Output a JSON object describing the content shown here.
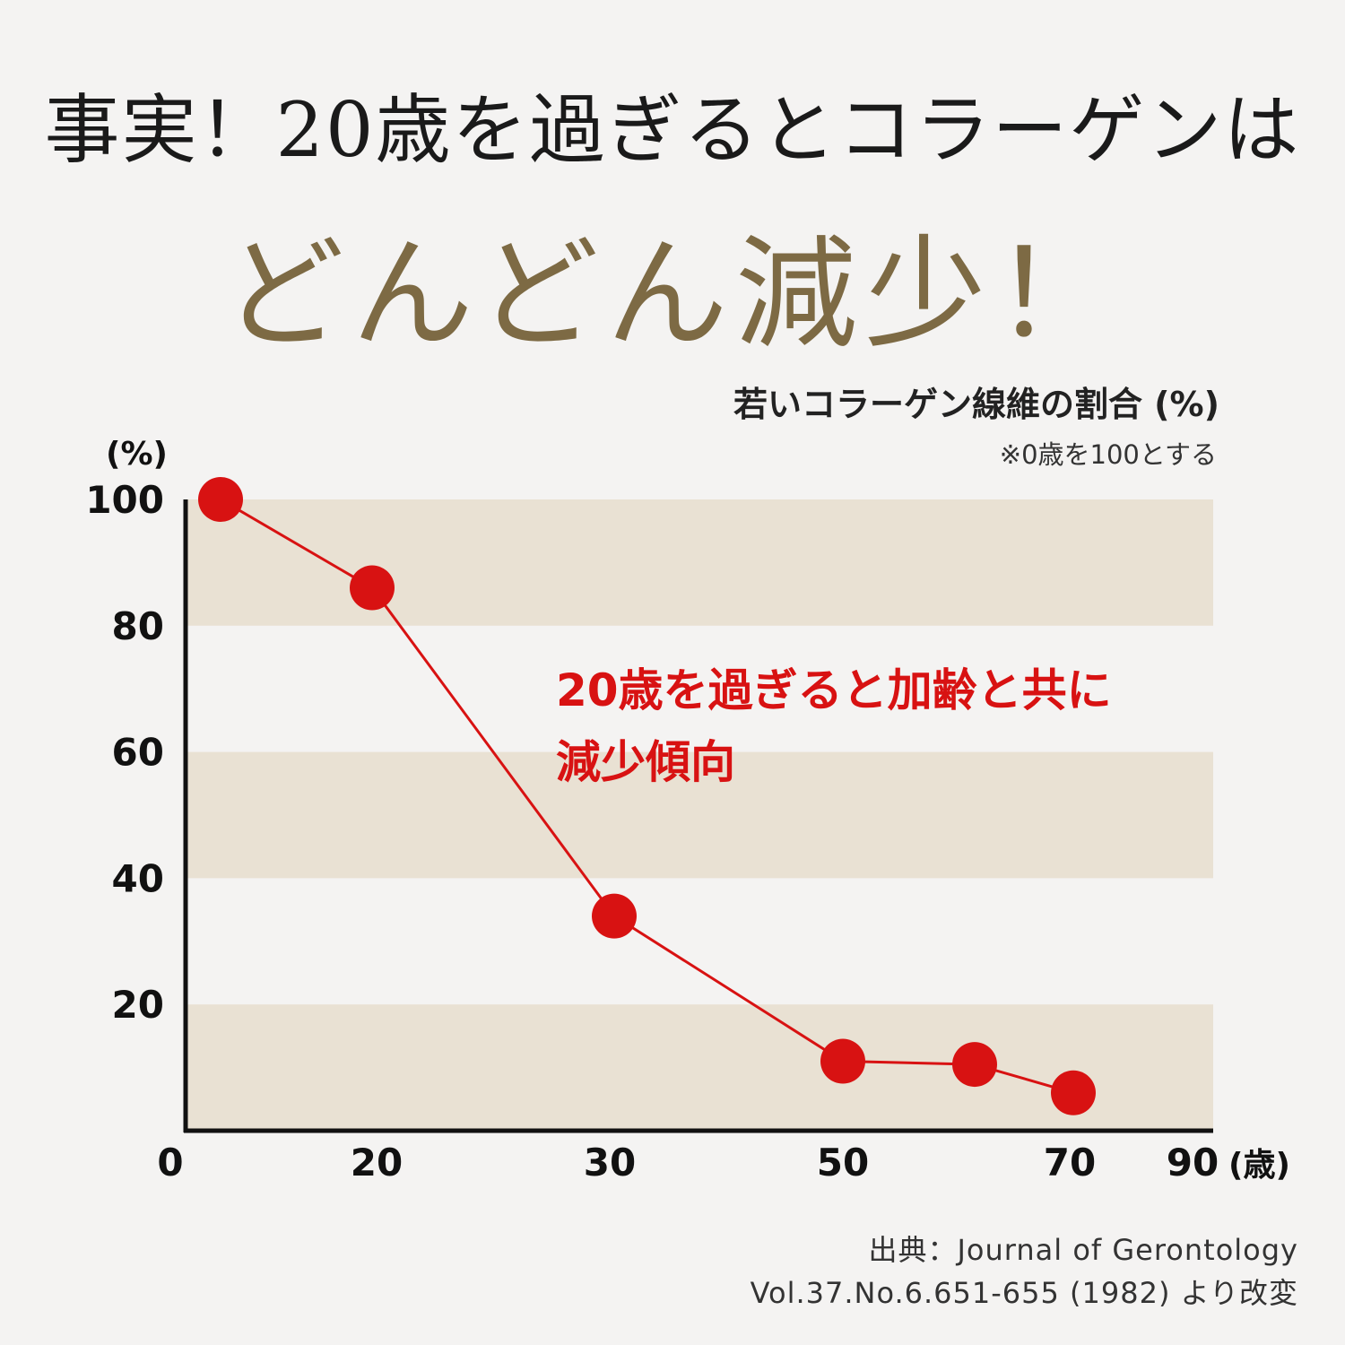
{
  "headline": {
    "line1": "事実！20歳を過ぎるとコラーゲンは",
    "line2": "どんどん減少！"
  },
  "chart_header": {
    "subtitle": "若いコラーゲン線維の割合 (%)",
    "note": "※0歳を100とする"
  },
  "callout": {
    "line1": "20歳を過ぎると加齢と共に",
    "line2": "減少傾向"
  },
  "source": {
    "line1": "出典：Journal of Gerontology",
    "line2": "Vol.37.No.6.651-655 (1982) より改変"
  },
  "colors": {
    "band": "#e9e1d3",
    "background": "#f4f3f2",
    "series": "#d81212",
    "axis": "#111111",
    "headline_accent": "#7d6a44"
  },
  "chart_data": {
    "type": "line",
    "ylabel": "(%)",
    "xlabel": "(歳)",
    "xticks": [
      "0",
      "20",
      "30",
      "50",
      "70",
      "90"
    ],
    "yticks": [
      "100",
      "80",
      "60",
      "40",
      "20"
    ],
    "ylim": [
      0,
      100
    ],
    "grid": "alternating horizontal bands",
    "series": [
      {
        "points": [
          {
            "x": "0",
            "y": 100
          },
          {
            "x": "20",
            "y": 86
          },
          {
            "x": "30",
            "y": 34
          },
          {
            "x": "50",
            "y": 11
          },
          {
            "x": "60",
            "y": 10.5
          },
          {
            "x": "70",
            "y": 6
          }
        ]
      }
    ]
  }
}
